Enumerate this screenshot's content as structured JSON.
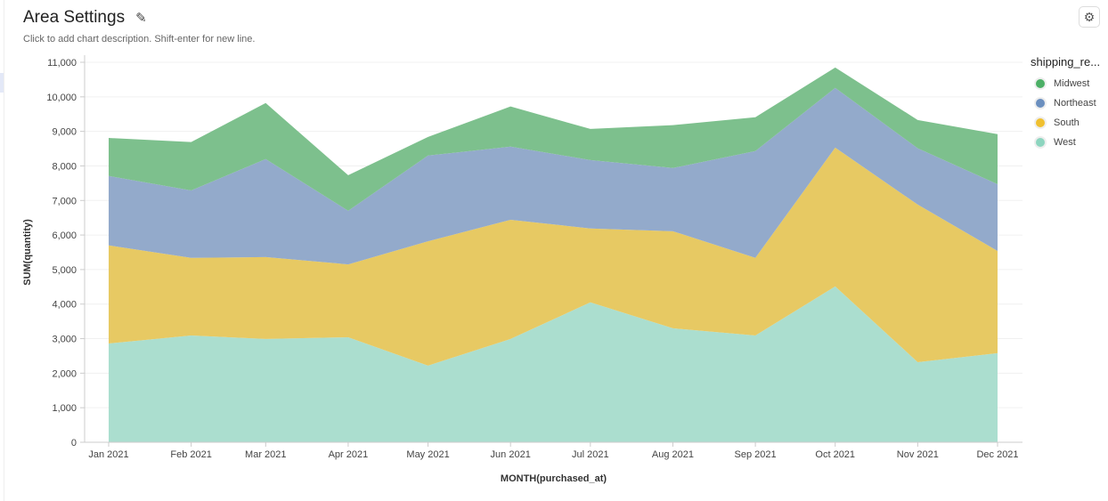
{
  "header": {
    "title": "Area Settings",
    "description": "Click to add chart description. Shift-enter for new line.",
    "edit_icon": "pencil-icon",
    "settings_icon": "gear-icon"
  },
  "chart_data": {
    "type": "area",
    "stacked": true,
    "xlabel": "MONTH(purchased_at)",
    "ylabel": "SUM(quantity)",
    "ylim": [
      0,
      11000
    ],
    "yticks": [
      "0",
      "1,000",
      "2,000",
      "3,000",
      "4,000",
      "5,000",
      "6,000",
      "7,000",
      "8,000",
      "9,000",
      "10,000",
      "11,000"
    ],
    "categories": [
      "Jan 2021",
      "Feb 2021",
      "Mar 2021",
      "Apr 2021",
      "May 2021",
      "Jun 2021",
      "Jul 2021",
      "Aug 2021",
      "Sep 2021",
      "Oct 2021",
      "Nov 2021",
      "Dec 2021"
    ],
    "dates": [
      "2021-01-01",
      "2021-02-01",
      "2021-03-01",
      "2021-04-01",
      "2021-05-01",
      "2021-06-01",
      "2021-07-01",
      "2021-08-01",
      "2021-09-01",
      "2021-10-01",
      "2021-11-01",
      "2021-12-01"
    ],
    "grid": true,
    "legend": {
      "title": "shipping_re...",
      "placement": "right"
    },
    "series": [
      {
        "name": "West",
        "color": "#8dd5bf",
        "fill": "#abdecf",
        "values": [
          2860,
          3090,
          2990,
          3040,
          2220,
          2990,
          4050,
          3300,
          3090,
          4510,
          2320,
          2580
        ]
      },
      {
        "name": "South",
        "color": "#f0c030",
        "fill": "#e7c963",
        "values": [
          2840,
          2250,
          2370,
          2110,
          3600,
          3450,
          2140,
          2810,
          2250,
          4020,
          4560,
          2960
        ]
      },
      {
        "name": "Northeast",
        "color": "#6b8fbf",
        "fill": "#93aacb",
        "values": [
          2010,
          1950,
          2840,
          1550,
          2480,
          2120,
          1980,
          1830,
          3090,
          1730,
          1630,
          1930
        ]
      },
      {
        "name": "Midwest",
        "color": "#4caf66",
        "fill": "#7dc08d",
        "values": [
          1100,
          1400,
          1620,
          1030,
          540,
          1160,
          900,
          1240,
          980,
          590,
          820,
          1450
        ]
      }
    ]
  }
}
